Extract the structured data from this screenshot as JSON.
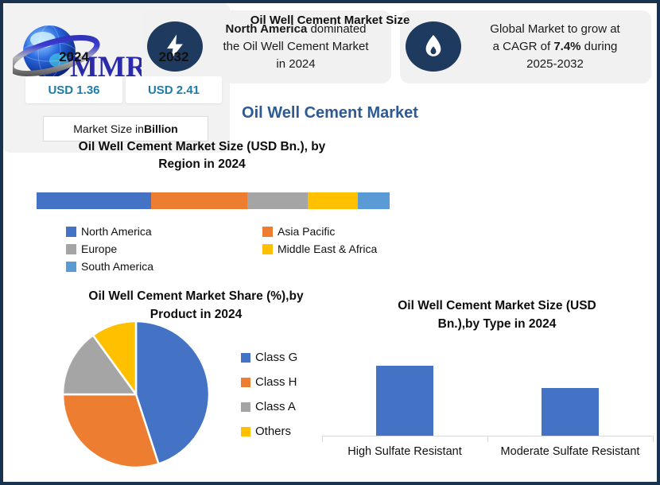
{
  "brand": {
    "logo_text": "MMR"
  },
  "header_cards": [
    {
      "icon": "lightning-icon",
      "lines": [
        [
          {
            "t": "North America",
            "b": 1
          },
          {
            "t": " dominated"
          }
        ],
        [
          {
            "t": "the Oil Well Cement Market"
          }
        ],
        [
          {
            "t": "in 2024"
          }
        ]
      ]
    },
    {
      "icon": "flame-icon",
      "lines": [
        [
          {
            "t": "Global Market to grow at"
          }
        ],
        [
          {
            "t": "a CAGR of "
          },
          {
            "t": "7.4%",
            "b": 1
          },
          {
            "t": " during"
          }
        ],
        [
          {
            "t": "2025-2032"
          }
        ]
      ]
    }
  ],
  "page_title": "Oil Well Cement Market",
  "market_size_card": {
    "title": "Oil Well Cement Market Size",
    "columns": [
      {
        "year": "2024",
        "value": "USD 1.36"
      },
      {
        "year": "2032",
        "value": "USD 2.41"
      }
    ],
    "footnote_runs": [
      {
        "t": "Market Size in "
      },
      {
        "t": "Billion",
        "b": 1
      }
    ]
  },
  "chart_data": [
    {
      "id": "region-stacked-bar",
      "type": "bar",
      "subtype": "horizontal-stacked-single-bar",
      "title_lines": [
        "Oil Well Cement Market Size (USD Bn.), by",
        "Region in 2024"
      ],
      "categories": [
        "North America",
        "Asia Pacific",
        "Europe",
        "Middle East & Africa",
        "South America"
      ],
      "values_pct_of_bar": [
        32,
        27,
        17,
        14,
        9
      ],
      "colors": [
        "#4472C4",
        "#ED7D31",
        "#A5A5A5",
        "#FFC000",
        "#5B9BD5"
      ],
      "legend_columns": [
        [
          0,
          2,
          4
        ],
        [
          1,
          3
        ]
      ],
      "legend_position": "bottom"
    },
    {
      "id": "product-pie",
      "type": "pie",
      "title_lines": [
        "Oil Well Cement Market Share (%),by",
        "Product in 2024"
      ],
      "categories": [
        "Class G",
        "Class H",
        "Class A",
        "Others"
      ],
      "values_pct": [
        45,
        30,
        15,
        10
      ],
      "colors": [
        "#4472C4",
        "#ED7D31",
        "#A5A5A5",
        "#FFC000"
      ],
      "legend_position": "right",
      "start_angle_deg": 0,
      "direction": "clockwise"
    },
    {
      "id": "type-bars",
      "type": "bar",
      "title_lines": [
        "Oil Well Cement Market Size (USD",
        "Bn.),by Type in 2024"
      ],
      "categories": [
        "High Sulfate Resistant",
        "Moderate Sulfate Resistant"
      ],
      "values_approx_usd_bn": [
        0.88,
        0.6
      ],
      "ylim": [
        0,
        1.0
      ],
      "bar_color": "#4472C4",
      "grid": false
    }
  ],
  "colors": {
    "frame_border": "#17334F",
    "card_background": "#F1F1F2",
    "icon_circle": "#1F3A5F",
    "page_title": "#2E5A94",
    "value_text": "#1E7BA8",
    "axis_line": "#D9D9D9"
  }
}
